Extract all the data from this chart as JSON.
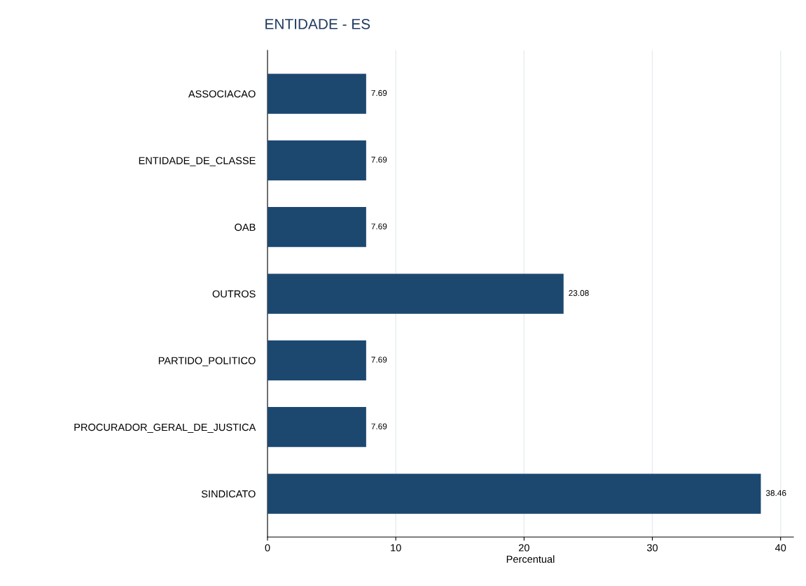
{
  "chart_data": {
    "type": "bar",
    "orientation": "horizontal",
    "title": "ENTIDADE - ES",
    "xlabel": "Percentual",
    "categories": [
      "ASSOCIACAO",
      "ENTIDADE_DE_CLASSE",
      "OAB",
      "OUTROS",
      "PARTIDO_POLITICO",
      "PROCURADOR_GERAL_DE_JUSTICA",
      "SINDICATO"
    ],
    "values": [
      7.69,
      7.69,
      7.69,
      23.08,
      7.69,
      7.69,
      38.46
    ],
    "color": "#1c4870",
    "xlim": [
      0,
      41
    ],
    "xticks": [
      0,
      10,
      20,
      30,
      40
    ],
    "grid": "x",
    "data_labels": true
  }
}
